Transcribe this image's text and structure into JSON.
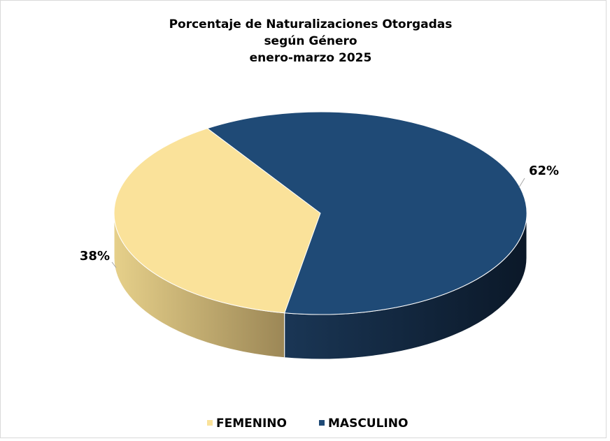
{
  "chart_data": {
    "type": "pie3d",
    "title": [
      "Porcentaje de Naturalizaciones Otorgadas",
      "según Género",
      "enero-marzo 2025"
    ],
    "categories": [
      "FEMENINO",
      "MASCULINO"
    ],
    "values": [
      38,
      62
    ],
    "value_labels": [
      "38%",
      "62%"
    ],
    "colors": [
      "#fae29a",
      "#1f4a76"
    ],
    "legend": "bottom"
  }
}
